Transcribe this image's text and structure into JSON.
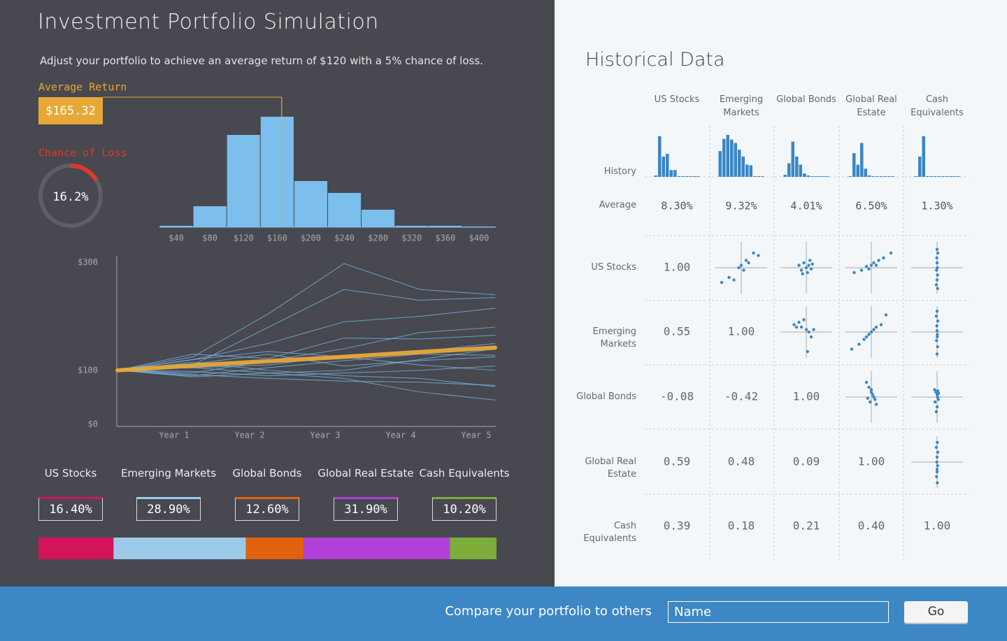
{
  "header": {
    "title": "Investment Portfolio Simulation",
    "subtitle": "Adjust your portfolio to achieve an average return of $120 with a 5% chance of loss."
  },
  "average_return": {
    "label": "Average Return",
    "value": 165.32,
    "value_label": "$165.32",
    "color": "#e8a838"
  },
  "chance_of_loss": {
    "label": "Chance of Loss",
    "value": 16.2,
    "value_label": "16.2%",
    "color": "#e0392b"
  },
  "return_histogram": {
    "type": "histogram",
    "bins": [
      20,
      60,
      100,
      140,
      180,
      220,
      260,
      300,
      340,
      380,
      420
    ],
    "values": [
      2,
      30,
      132,
      158,
      66,
      49,
      25,
      2,
      2,
      1
    ],
    "color": "#7cbfec",
    "xlim": [
      20,
      420
    ],
    "ylim": [
      0,
      160
    ],
    "xticks": [
      {
        "value": 40,
        "label": "$40"
      },
      {
        "value": 80,
        "label": "$80"
      },
      {
        "value": 120,
        "label": "$120"
      },
      {
        "value": 160,
        "label": "$160"
      },
      {
        "value": 200,
        "label": "$200"
      },
      {
        "value": 240,
        "label": "$240"
      },
      {
        "value": 280,
        "label": "$280"
      },
      {
        "value": 320,
        "label": "$320"
      },
      {
        "value": 360,
        "label": "$360"
      },
      {
        "value": 400,
        "label": "$400"
      }
    ]
  },
  "simulation": {
    "type": "line",
    "x": [
      0,
      1,
      2,
      3,
      4,
      5
    ],
    "xlim": [
      0,
      5
    ],
    "ylim": [
      0,
      320
    ],
    "xticks": [
      {
        "value": 1,
        "label": "Year 1"
      },
      {
        "value": 2,
        "label": "Year 2"
      },
      {
        "value": 3,
        "label": "Year 3"
      },
      {
        "value": 4,
        "label": "Year 4"
      },
      {
        "value": 5,
        "label": "Year 5"
      }
    ],
    "yticks": [
      {
        "value": 0,
        "label": "$0"
      },
      {
        "value": 100,
        "label": "$100"
      },
      {
        "value": 300,
        "label": "$300"
      }
    ],
    "series": [
      {
        "color": "#7cbfec",
        "values": [
          100,
          125,
          205,
          298,
          250,
          240
        ]
      },
      {
        "color": "#7cbfec",
        "values": [
          100,
          110,
          180,
          250,
          230,
          235
        ]
      },
      {
        "color": "#7cbfec",
        "values": [
          100,
          120,
          150,
          190,
          200,
          215
        ]
      },
      {
        "color": "#7cbfec",
        "values": [
          100,
          95,
          118,
          140,
          170,
          180
        ]
      },
      {
        "color": "#7cbfec",
        "values": [
          100,
          130,
          122,
          160,
          158,
          165
        ]
      },
      {
        "color": "#7cbfec",
        "values": [
          100,
          105,
          110,
          128,
          135,
          150
        ]
      },
      {
        "color": "#7cbfec",
        "values": [
          100,
          88,
          95,
          100,
          120,
          140
        ]
      },
      {
        "color": "#7cbfec",
        "values": [
          100,
          112,
          130,
          108,
          118,
          125
        ]
      },
      {
        "color": "#7cbfec",
        "values": [
          100,
          98,
          90,
          95,
          100,
          108
        ]
      },
      {
        "color": "#7cbfec",
        "values": [
          100,
          92,
          85,
          80,
          78,
          72
        ]
      },
      {
        "color": "#7cbfec",
        "values": [
          100,
          115,
          100,
          90,
          85,
          70
        ]
      },
      {
        "color": "#7cbfec",
        "values": [
          100,
          105,
          95,
          85,
          60,
          45
        ]
      },
      {
        "color": "#7cbfec",
        "values": [
          100,
          120,
          135,
          125,
          110,
          100
        ]
      },
      {
        "color": "#7cbfec",
        "values": [
          100,
          90,
          105,
          118,
          130,
          128
        ]
      },
      {
        "color": "#e8a838",
        "values": [
          100,
          109,
          117,
          125,
          134,
          142
        ]
      }
    ]
  },
  "allocation": {
    "type": "stacked-bar",
    "categories": [
      "US Stocks",
      "Emerging Markets",
      "Global Bonds",
      "Global Real Estate",
      "Cash Equivalents"
    ],
    "values": [
      16.4,
      28.9,
      12.6,
      31.9,
      10.2
    ],
    "value_labels": [
      "16.40%",
      "28.90%",
      "12.60%",
      "31.90%",
      "10.20%"
    ],
    "colors": [
      "#d4145a",
      "#9ecae9",
      "#e0620d",
      "#b040d8",
      "#7cac3a"
    ]
  },
  "historical": {
    "title": "Historical Data",
    "columns": [
      "US Stocks",
      "Emerging Markets",
      "Global Bonds",
      "Global Real Estate",
      "Cash Equivalents"
    ],
    "row_labels": [
      "History",
      "Average",
      "US Stocks",
      "Emerging Markets",
      "Global Bonds",
      "Global Real Estate",
      "Cash Equivalents"
    ],
    "history": {
      "type": "bar",
      "color": "#3a86c4",
      "ylim": [
        0,
        65
      ],
      "series": [
        {
          "values": [
            2,
            60,
            30,
            34,
            10,
            10,
            1,
            1,
            1,
            1,
            1,
            1
          ]
        },
        {
          "values": [
            38,
            56,
            62,
            55,
            50,
            40,
            30,
            18,
            17,
            1,
            1,
            1
          ]
        },
        {
          "values": [
            3,
            20,
            52,
            30,
            18,
            5,
            2,
            1,
            1,
            1,
            1,
            1
          ]
        },
        {
          "values": [
            1,
            35,
            18,
            50,
            12,
            2,
            1,
            1,
            1,
            1,
            1,
            1
          ]
        },
        {
          "values": [
            1,
            30,
            60,
            1,
            1,
            1,
            1,
            1,
            1,
            1,
            1,
            1
          ]
        }
      ]
    },
    "averages": [
      "8.30%",
      "9.32%",
      "4.01%",
      "6.50%",
      "1.30%"
    ],
    "correlations": [
      [
        "1.00"
      ],
      [
        "0.55",
        "1.00"
      ],
      [
        "-0.08",
        "-0.42",
        "1.00"
      ],
      [
        "0.59",
        "0.48",
        "0.09",
        "1.00"
      ],
      [
        "0.39",
        "0.18",
        "0.21",
        "0.40",
        "1.00"
      ]
    ],
    "scatter": {
      "type": "scatter",
      "color": "#3a86c4",
      "xlim": [
        -1,
        1
      ],
      "ylim": [
        -1,
        1
      ],
      "plots": [
        {
          "x": [
            -0.8,
            -0.5,
            -0.3,
            -0.1,
            0,
            0.1,
            0.2,
            0.3,
            0.5,
            0.7
          ],
          "y": [
            -0.6,
            -0.4,
            -0.5,
            0,
            0.1,
            -0.1,
            0.3,
            0.2,
            0.6,
            0.5
          ]
        },
        {
          "x": [
            -0.3,
            -0.2,
            -0.1,
            0,
            0.05,
            0.1,
            0.2,
            0.25,
            -0.15,
            0.15
          ],
          "y": [
            0.1,
            -0.1,
            0.2,
            0,
            -0.2,
            0.1,
            -0.05,
            0.15,
            -0.25,
            0.3
          ]
        },
        {
          "x": [
            -0.7,
            -0.4,
            -0.2,
            0,
            0.1,
            0.2,
            0.3,
            0.5,
            0.8,
            -0.1
          ],
          "y": [
            -0.2,
            -0.1,
            0.05,
            0.1,
            0.2,
            0.1,
            0.3,
            0.4,
            0.6,
            -0.05
          ]
        },
        {
          "x": [
            -0.03,
            0,
            0.02,
            -0.02,
            0.01,
            0,
            -0.01,
            0.03,
            0,
            0.02
          ],
          "y": [
            -0.7,
            -0.5,
            -0.3,
            -0.1,
            0,
            0.2,
            0.4,
            0.6,
            0.75,
            -0.85
          ]
        },
        {
          "x": [
            -0.5,
            -0.3,
            -0.2,
            -0.1,
            0,
            0.1,
            0.2,
            0.3,
            -0.4,
            0.05
          ],
          "y": [
            0.3,
            0.4,
            0.2,
            0.5,
            0.1,
            0,
            -0.2,
            0.1,
            0.2,
            -0.8
          ]
        },
        {
          "x": [
            -0.8,
            -0.5,
            -0.3,
            -0.1,
            0,
            0.1,
            0.2,
            0.4,
            0.6,
            -0.2
          ],
          "y": [
            -0.7,
            -0.5,
            -0.3,
            -0.1,
            0,
            0.1,
            0.2,
            0.3,
            0.7,
            -0.2
          ]
        },
        {
          "x": [
            0,
            0.02,
            -0.02,
            0.01,
            0,
            -0.01,
            0.03,
            -0.03,
            0,
            0.01
          ],
          "y": [
            -0.9,
            -0.6,
            -0.35,
            -0.1,
            0.05,
            0.25,
            0.45,
            0.65,
            0.85,
            -0.2
          ]
        },
        {
          "x": [
            -0.2,
            -0.1,
            0,
            0.05,
            0.1,
            0.15,
            -0.05,
            0.2,
            0,
            -0.15
          ],
          "y": [
            0.6,
            0.4,
            0.3,
            0.1,
            0,
            -0.1,
            -0.2,
            -0.3,
            0.2,
            -0.05
          ]
        },
        {
          "x": [
            -0.1,
            -0.05,
            0,
            0.02,
            0.05,
            -0.08,
            0,
            0.03,
            -0.03,
            0.06
          ],
          "y": [
            0.3,
            0.2,
            0.1,
            0,
            -0.1,
            -0.2,
            -0.4,
            0.25,
            -0.6,
            0.15
          ]
        },
        {
          "x": [
            0.01,
            -0.02,
            0,
            0.02,
            -0.01,
            0,
            0.03,
            -0.03,
            0.01,
            0
          ],
          "y": [
            -0.85,
            -0.6,
            -0.4,
            -0.15,
            0,
            0.2,
            0.4,
            0.6,
            0.8,
            -0.3
          ]
        }
      ]
    }
  },
  "footer": {
    "prompt": "Compare your portfolio to others",
    "input_placeholder": "Name",
    "button": "Go"
  }
}
